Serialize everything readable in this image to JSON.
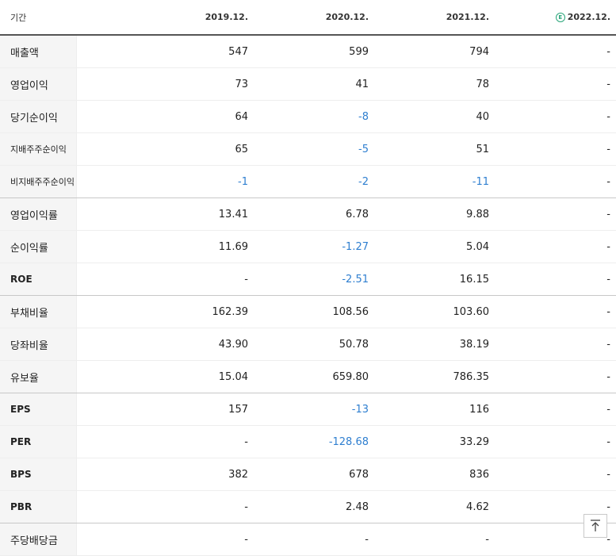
{
  "header": {
    "label": "기간",
    "periods": [
      "2019.12.",
      "2020.12.",
      "2021.12.",
      "2022.12."
    ],
    "estimate_icon": "estimate-e-icon",
    "estimate_icon_letter": "E"
  },
  "rows": [
    {
      "label": "매출액",
      "values": [
        "547",
        "599",
        "794",
        "-"
      ]
    },
    {
      "label": "영업이익",
      "values": [
        "73",
        "41",
        "78",
        "-"
      ]
    },
    {
      "label": "당기순이익",
      "values": [
        "64",
        "-8",
        "40",
        "-"
      ]
    },
    {
      "label": "지배주주순이익",
      "values": [
        "65",
        "-5",
        "51",
        "-"
      ]
    },
    {
      "label": "비지배주주순이익",
      "values": [
        "-1",
        "-2",
        "-11",
        "-"
      ]
    },
    {
      "label": "영업이익률",
      "values": [
        "13.41",
        "6.78",
        "9.88",
        "-"
      ]
    },
    {
      "label": "순이익률",
      "values": [
        "11.69",
        "-1.27",
        "5.04",
        "-"
      ]
    },
    {
      "label": "ROE",
      "values": [
        "-",
        "-2.51",
        "16.15",
        "-"
      ]
    },
    {
      "label": "부채비율",
      "values": [
        "162.39",
        "108.56",
        "103.60",
        "-"
      ]
    },
    {
      "label": "당좌비율",
      "values": [
        "43.90",
        "50.78",
        "38.19",
        "-"
      ]
    },
    {
      "label": "유보율",
      "values": [
        "15.04",
        "659.80",
        "786.35",
        "-"
      ]
    },
    {
      "label": "EPS",
      "values": [
        "157",
        "-13",
        "116",
        "-"
      ]
    },
    {
      "label": "PER",
      "values": [
        "-",
        "-128.68",
        "33.29",
        "-"
      ]
    },
    {
      "label": "BPS",
      "values": [
        "382",
        "678",
        "836",
        "-"
      ]
    },
    {
      "label": "PBR",
      "values": [
        "-",
        "2.48",
        "4.62",
        "-"
      ]
    },
    {
      "label": "주당배당금",
      "values": [
        "-",
        "-",
        "-",
        "-"
      ]
    }
  ],
  "colors": {
    "negative": "#2f7fd0",
    "estimate": "#2aa67a"
  },
  "scroll_top": {
    "icon": "arrow-up-icon"
  }
}
